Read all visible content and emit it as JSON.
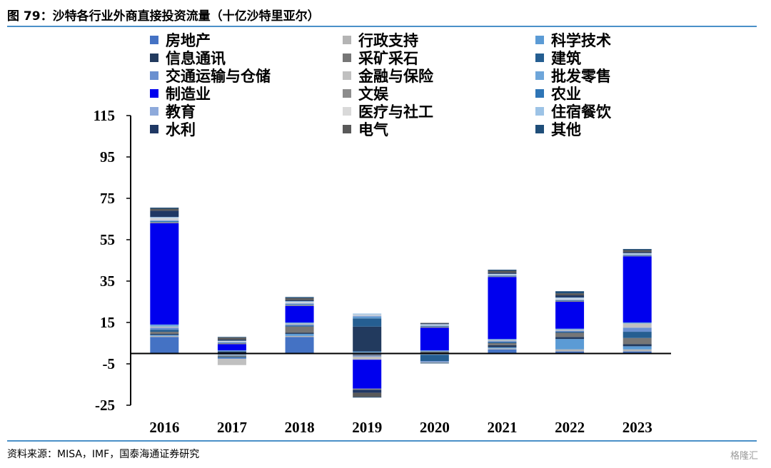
{
  "figure": {
    "title": "图 79：沙特各行业外商直接投资流量（十亿沙特里亚尔）",
    "source": "资料来源：MISA，IMF，国泰海通证券研究",
    "watermark": "格隆汇"
  },
  "chart_data": {
    "type": "bar",
    "stacked": true,
    "title": "",
    "xlabel": "",
    "ylabel": "",
    "categories": [
      "2016",
      "2017",
      "2018",
      "2019",
      "2020",
      "2021",
      "2022",
      "2023"
    ],
    "ylim": [
      -25,
      115
    ],
    "yticks": [
      115,
      95,
      75,
      55,
      35,
      15,
      -5,
      -25
    ],
    "legend_position": "top",
    "series": [
      {
        "name": "房地产",
        "color": "#4472c4",
        "values": [
          8,
          -0.5,
          8,
          -0.5,
          -0.3,
          2,
          1,
          1
        ]
      },
      {
        "name": "行政支持",
        "color": "#b4b4b4",
        "values": [
          0.5,
          -0.3,
          0.5,
          0.5,
          -0.2,
          0.5,
          1,
          1
        ]
      },
      {
        "name": "科学技术",
        "color": "#5b9bd5",
        "values": [
          0.5,
          -0.3,
          1,
          0.5,
          -0.2,
          0.5,
          5,
          1.5
        ]
      },
      {
        "name": "信息通讯",
        "color": "#223a5e",
        "values": [
          0.5,
          1,
          0.5,
          12,
          0.5,
          1,
          1,
          1
        ]
      },
      {
        "name": "采矿采石",
        "color": "#767676",
        "values": [
          1,
          -0.5,
          3,
          -0.5,
          0.5,
          1,
          2,
          3
        ]
      },
      {
        "name": "建筑",
        "color": "#255e91",
        "values": [
          1,
          -0.5,
          0.5,
          4,
          -3,
          0.5,
          0.5,
          3
        ]
      },
      {
        "name": "交通运输与仓储",
        "color": "#6a90d0",
        "values": [
          1,
          -0.5,
          0.5,
          -0.5,
          -0.5,
          0.5,
          0.5,
          2
        ]
      },
      {
        "name": "金融与保险",
        "color": "#c0c0c0",
        "values": [
          0.5,
          -3,
          0.5,
          -1.5,
          -0.3,
          0.5,
          0.5,
          2
        ]
      },
      {
        "name": "批发零售",
        "color": "#6ea6da",
        "values": [
          1,
          0.5,
          0.5,
          0.5,
          0.5,
          0.5,
          0.5,
          0.5
        ]
      },
      {
        "name": "制造业",
        "color": "#0000ee",
        "values": [
          49,
          3,
          8,
          -14,
          11,
          30,
          13,
          32
        ]
      },
      {
        "name": "文娱",
        "color": "#8c8c8c",
        "values": [
          0.5,
          0.5,
          0.5,
          -0.5,
          0.5,
          0.3,
          0.5,
          0.3
        ]
      },
      {
        "name": "农业",
        "color": "#2e75b6",
        "values": [
          0.5,
          0.3,
          0.3,
          0.3,
          0.3,
          0.3,
          0.3,
          0.3
        ]
      },
      {
        "name": "教育",
        "color": "#8eaadb",
        "values": [
          0.5,
          0.3,
          0.5,
          0.5,
          0.3,
          0.3,
          0.3,
          0.3
        ]
      },
      {
        "name": "医疗与社工",
        "color": "#d9d9d9",
        "values": [
          1,
          0.3,
          0.5,
          0.5,
          0.3,
          0.3,
          0.5,
          0.3
        ]
      },
      {
        "name": "住宿餐饮",
        "color": "#9dc3e6",
        "values": [
          0.5,
          0.3,
          0.5,
          0.5,
          0.3,
          0.3,
          0.5,
          0.3
        ]
      },
      {
        "name": "水利",
        "color": "#1f3864",
        "values": [
          3,
          0.5,
          0.5,
          -1.5,
          0.3,
          0.5,
          1,
          0.5
        ]
      },
      {
        "name": "电气",
        "color": "#595959",
        "values": [
          1,
          1,
          1,
          -2,
          0.3,
          1,
          1,
          1
        ]
      },
      {
        "name": "其他",
        "color": "#1f4e79",
        "values": [
          0.5,
          0.3,
          0.5,
          -0.3,
          -0.3,
          0.5,
          1,
          0.5
        ]
      }
    ]
  }
}
